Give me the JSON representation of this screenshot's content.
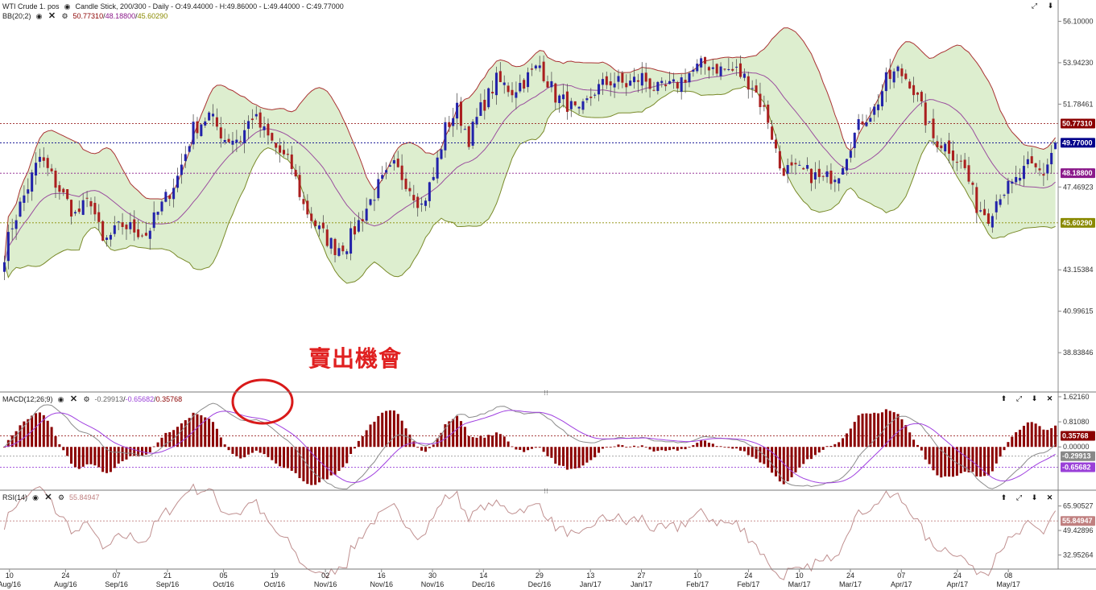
{
  "header": {
    "title": "WTI Crude 1. pos",
    "chart_desc": "Candle Stick, 200/300 - Daily - O:49.44000 - H:49.86000 - L:49.44000 - C:49.77000",
    "bb_label": "BB(20;2)",
    "bb_values": [
      "50.77310",
      "48.18800",
      "45.60290"
    ],
    "macd_label": "MACD(12;26;9)",
    "macd_values": [
      "-0.29913",
      "-0.65682",
      "0.35768"
    ],
    "rsi_label": "RSI(14)",
    "rsi_value": "55.84947"
  },
  "annotation": {
    "text": "賣出機會"
  },
  "colors": {
    "up": "#2222aa",
    "down": "#aa1f1f",
    "band_fill": "#ddeecf",
    "upper": "#a33",
    "lower": "#7a8a2a",
    "middle": "#9a4d9e",
    "macd_line": "#8c8c8c",
    "signal_line": "#a040e0",
    "hist": "#8b0000",
    "rsi": "#c09090",
    "circle": "#d91a1a"
  },
  "chart_data": [
    {
      "type": "candlestick",
      "name": "WTI Crude 1. pos",
      "ylim": [
        37.0,
        57.0
      ],
      "y_ticks": [
        "56.10000",
        "53.94230",
        "51.78461",
        "47.46923",
        "43.15384",
        "40.99615",
        "38.83846"
      ],
      "last_ohlc": {
        "open": 49.44,
        "high": 49.86,
        "low": 49.44,
        "close": 49.77
      },
      "markers": [
        {
          "label": "50.77310",
          "value": 50.7731,
          "color": "#8b0000"
        },
        {
          "label": "49.77000",
          "value": 49.77,
          "color": "#00008b"
        },
        {
          "label": "48.18800",
          "value": 48.188,
          "color": "#8b1a8b"
        },
        {
          "label": "45.60290",
          "value": 45.6029,
          "color": "#8a8a00"
        }
      ],
      "close_keys": [
        [
          0,
          44.0
        ],
        [
          2,
          45.5
        ],
        [
          6,
          47.5
        ],
        [
          9,
          49.0
        ],
        [
          12,
          48.0
        ],
        [
          18,
          46.0
        ],
        [
          22,
          46.8
        ],
        [
          25,
          44.5
        ],
        [
          30,
          45.5
        ],
        [
          36,
          45.0
        ],
        [
          40,
          46.5
        ],
        [
          44,
          48.0
        ],
        [
          48,
          50.5
        ],
        [
          52,
          51.2
        ],
        [
          56,
          50.0
        ],
        [
          60,
          50.0
        ],
        [
          63,
          51.2
        ],
        [
          66,
          50.3
        ],
        [
          69,
          49.5
        ],
        [
          73,
          48.5
        ],
        [
          76,
          46.5
        ],
        [
          80,
          45.2
        ],
        [
          84,
          44.3
        ],
        [
          87,
          44.5
        ],
        [
          91,
          46.0
        ],
        [
          95,
          47.5
        ],
        [
          99,
          48.5
        ],
        [
          102,
          47.8
        ],
        [
          106,
          46.5
        ],
        [
          109,
          48.0
        ],
        [
          112,
          50.5
        ],
        [
          115,
          51.5
        ],
        [
          118,
          50.0
        ],
        [
          121,
          51.5
        ],
        [
          125,
          53.0
        ],
        [
          129,
          52.5
        ],
        [
          132,
          53.0
        ],
        [
          136,
          53.8
        ],
        [
          140,
          52.2
        ],
        [
          143,
          51.8
        ],
        [
          146,
          51.2
        ],
        [
          150,
          52.5
        ],
        [
          154,
          53.0
        ],
        [
          158,
          52.8
        ],
        [
          162,
          53.2
        ],
        [
          166,
          52.5
        ],
        [
          170,
          52.7
        ],
        [
          174,
          53.4
        ],
        [
          178,
          53.9
        ],
        [
          182,
          53.6
        ],
        [
          186,
          53.5
        ],
        [
          190,
          52.8
        ],
        [
          194,
          51.0
        ],
        [
          197,
          48.5
        ],
        [
          200,
          48.3
        ],
        [
          204,
          48.2
        ],
        [
          208,
          47.8
        ],
        [
          212,
          48.3
        ],
        [
          215,
          49.8
        ],
        [
          218,
          51.0
        ],
        [
          221,
          51.5
        ],
        [
          224,
          53.0
        ],
        [
          227,
          53.5
        ],
        [
          230,
          53.0
        ],
        [
          233,
          51.5
        ],
        [
          236,
          50.0
        ],
        [
          240,
          49.5
        ],
        [
          244,
          48.4
        ],
        [
          247,
          46.5
        ],
        [
          250,
          46.0
        ],
        [
          253,
          47.2
        ],
        [
          256,
          47.5
        ],
        [
          260,
          48.5
        ],
        [
          264,
          48.2
        ],
        [
          267,
          49.77
        ]
      ],
      "count": 268
    },
    {
      "type": "bollinger",
      "name": "BB(20;2)",
      "upper": 50.7731,
      "middle": 48.188,
      "lower": 45.6029
    },
    {
      "type": "line",
      "name": "MACD(12;26;9)",
      "ylim": [
        -1.4,
        1.75
      ],
      "y_ticks": [
        "1.62160",
        "0.81080",
        "0.00000"
      ],
      "markers": [
        {
          "label": "0.35768",
          "value": 0.35768,
          "color": "#8b0000"
        },
        {
          "label": "-0.29913",
          "value": -0.29913,
          "color": "#888888"
        },
        {
          "label": "-0.65682",
          "value": -0.65682,
          "color": "#9a40d8"
        }
      ]
    },
    {
      "type": "line",
      "name": "RSI(14)",
      "ylim": [
        24.0,
        76.0
      ],
      "y_ticks": [
        "65.90527",
        "49.42896",
        "32.95264"
      ],
      "markers": [
        {
          "label": "55.84947",
          "value": 55.84947,
          "color": "#c08080"
        }
      ]
    }
  ],
  "x_axis": {
    "ticks": [
      {
        "day": "10",
        "month": "Aug/16",
        "i": 1
      },
      {
        "day": "24",
        "month": "Aug/16",
        "i": 12
      },
      {
        "day": "07",
        "month": "Sep/16",
        "i": 22
      },
      {
        "day": "21",
        "month": "Sep/16",
        "i": 32
      },
      {
        "day": "05",
        "month": "Oct/16",
        "i": 43
      },
      {
        "day": "19",
        "month": "Oct/16",
        "i": 53
      },
      {
        "day": "02",
        "month": "Nov/16",
        "i": 63
      },
      {
        "day": "16",
        "month": "Nov/16",
        "i": 74
      },
      {
        "day": "30",
        "month": "Nov/16",
        "i": 84
      },
      {
        "day": "14",
        "month": "Dec/16",
        "i": 94
      },
      {
        "day": "29",
        "month": "Dec/16",
        "i": 105
      },
      {
        "day": "13",
        "month": "Jan/17",
        "i": 115
      },
      {
        "day": "27",
        "month": "Jan/17",
        "i": 125
      },
      {
        "day": "10",
        "month": "Feb/17",
        "i": 136
      },
      {
        "day": "24",
        "month": "Feb/17",
        "i": 146
      },
      {
        "day": "10",
        "month": "Mar/17",
        "i": 156
      },
      {
        "day": "24",
        "month": "Mar/17",
        "i": 166
      },
      {
        "day": "07",
        "month": "Apr/17",
        "i": 176
      },
      {
        "day": "24",
        "month": "Apr/17",
        "i": 187
      },
      {
        "day": "08",
        "month": "May/17",
        "i": 197
      }
    ]
  }
}
